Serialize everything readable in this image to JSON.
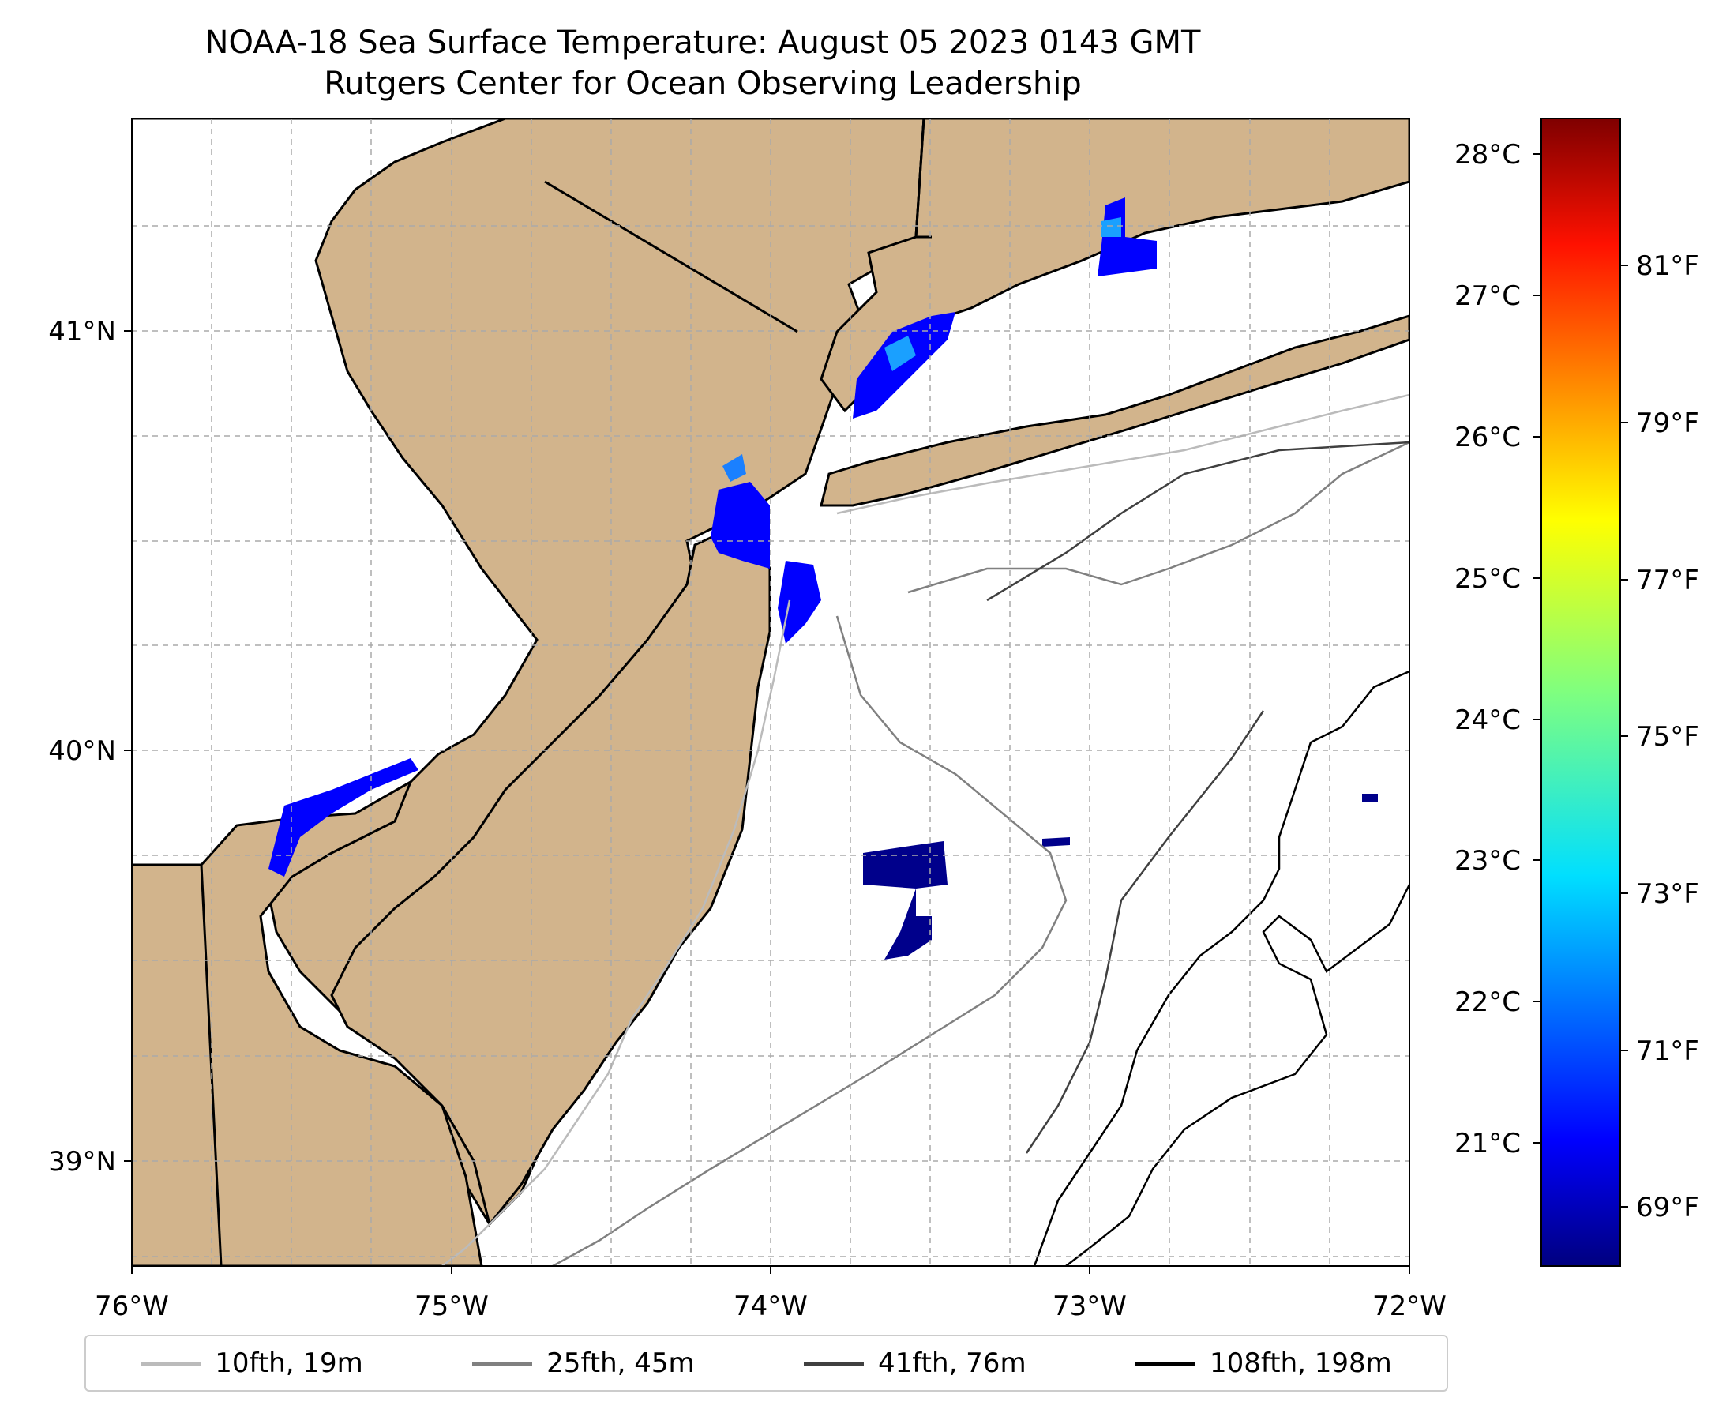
{
  "header": {
    "title_line1": "NOAA-18 Sea Surface Temperature: August 05 2023 0143 GMT",
    "title_line2": "Rutgers Center for Ocean Observing Leadership"
  },
  "axes": {
    "lon_labels": [
      "76°W",
      "75°W",
      "74°W",
      "73°W",
      "72°W"
    ],
    "lat_labels": [
      "41°N",
      "40°N",
      "39°N"
    ],
    "lon_range": [
      -76,
      -72
    ],
    "lat_range": [
      38.75,
      41.5
    ]
  },
  "colorbar": {
    "celsius_labels": [
      "28°C",
      "27°C",
      "26°C",
      "25°C",
      "24°C",
      "23°C",
      "22°C",
      "21°C"
    ],
    "fahrenheit_labels": [
      "81°F",
      "79°F",
      "77°F",
      "75°F",
      "73°F",
      "71°F",
      "69°F"
    ],
    "colormap": "jet"
  },
  "legend": {
    "items": [
      {
        "label": "10fth, 19m",
        "color": "#bbbbbb"
      },
      {
        "label": "25fth, 45m",
        "color": "#808080"
      },
      {
        "label": "41fth, 76m",
        "color": "#404040"
      },
      {
        "label": "108fth, 198m",
        "color": "#000000"
      }
    ]
  },
  "colors": {
    "land": "#d2b48c",
    "ocean": "#ffffff",
    "sst_cold": "#00008b",
    "sst_mid": "#0000ff"
  }
}
